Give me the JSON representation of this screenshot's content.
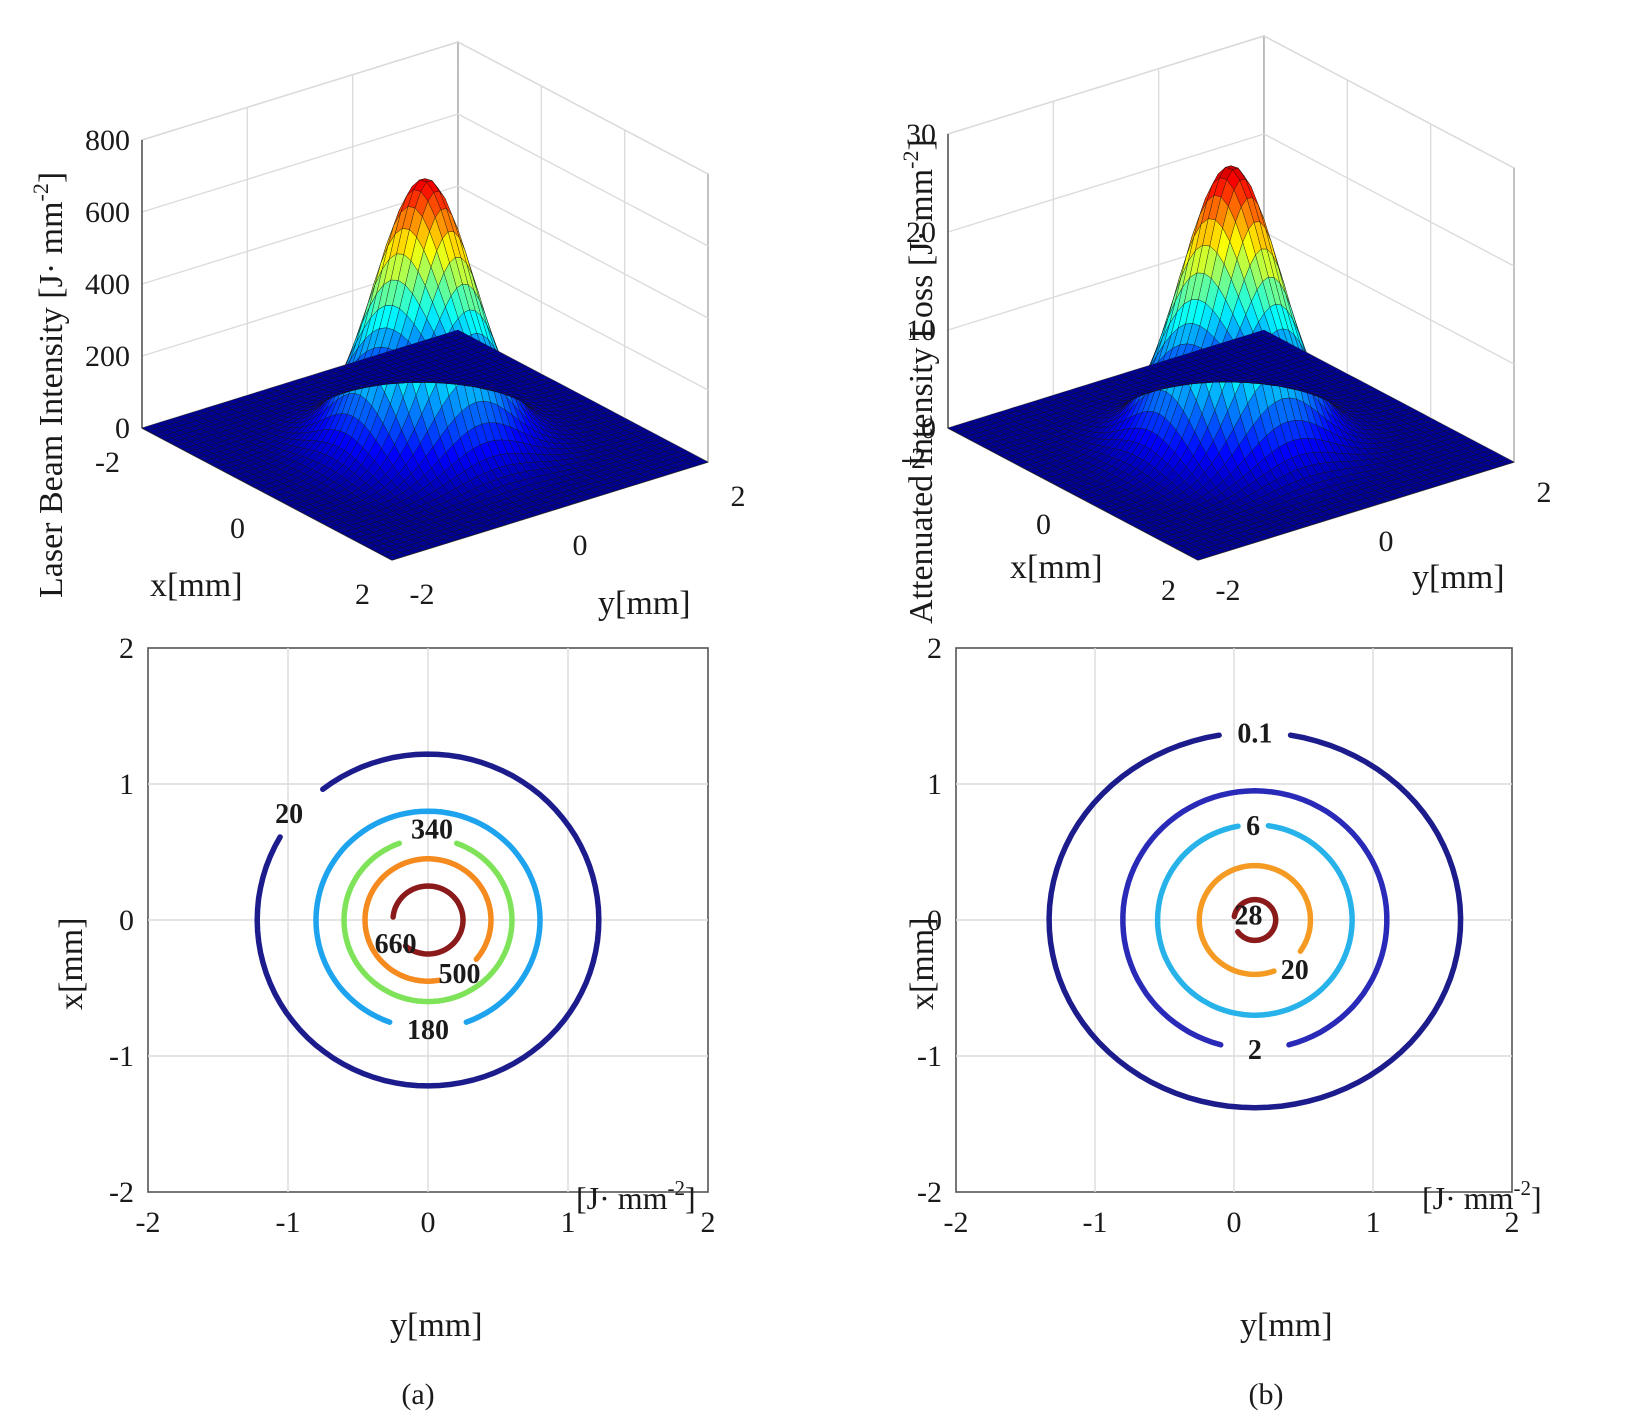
{
  "figure": {
    "caption_a": "(a)",
    "caption_b": "(b)",
    "unit_label_a": "[J· mm",
    "unit_label_b": "[J· mm",
    "unit_exponent": "-2"
  },
  "chart_data": [
    {
      "type": "surface",
      "panel": "a-top",
      "zlabel": "Laser Beam Intensity [J· mm",
      "zlabel_exp": "-2",
      "xlabel": "x[mm]",
      "ylabel": "y[mm]",
      "xlim": [
        -2,
        2
      ],
      "ylim": [
        -2,
        2
      ],
      "zlim": [
        0,
        800
      ],
      "x_ticks": [
        "-2",
        "0",
        "2"
      ],
      "y_ticks": [
        "-2",
        "0",
        "2"
      ],
      "z_ticks": [
        "0",
        "200",
        "400",
        "600",
        "800"
      ],
      "peak": 740,
      "sigma_mm": 0.5,
      "colormap": "jet"
    },
    {
      "type": "surface",
      "panel": "b-top",
      "zlabel": "Attenuated Intensity Loss [J· mm",
      "zlabel_exp": "-2",
      "xlabel": "x[mm]",
      "ylabel": "y[mm]",
      "xlim": [
        -2,
        2
      ],
      "ylim": [
        -2,
        2
      ],
      "zlim": [
        0,
        30
      ],
      "x_ticks": [
        "-2",
        "0",
        "2"
      ],
      "y_ticks": [
        "-2",
        "0",
        "2"
      ],
      "z_ticks": [
        "0",
        "10",
        "20",
        "30"
      ],
      "peak": 28.5,
      "sigma_mm": 0.5,
      "colormap": "jet"
    },
    {
      "type": "contour",
      "panel": "a-bottom",
      "xlabel": "y[mm]",
      "ylabel": "x[mm]",
      "xlim": [
        -2,
        2
      ],
      "ylim": [
        -2,
        2
      ],
      "x_ticks": [
        "-2",
        "-1",
        "0",
        "1",
        "2"
      ],
      "y_ticks": [
        "2",
        "1",
        "0",
        "-1",
        "-2"
      ],
      "grid": true,
      "center": [
        0,
        0
      ],
      "contours": [
        {
          "label": "20",
          "radius": 1.22,
          "color": "#1c1c8c"
        },
        {
          "label": "180",
          "radius": 0.8,
          "color": "#1ea3ef"
        },
        {
          "label": "340",
          "radius": 0.6,
          "color": "#7fe35a"
        },
        {
          "label": "500",
          "radius": 0.45,
          "color": "#f58a1f"
        },
        {
          "label": "660",
          "radius": 0.25,
          "color": "#8b1a1a"
        }
      ]
    },
    {
      "type": "contour",
      "panel": "b-bottom",
      "xlabel": "y[mm]",
      "ylabel": "x[mm]",
      "xlim": [
        -2,
        2
      ],
      "ylim": [
        -2,
        2
      ],
      "x_ticks": [
        "-2",
        "-1",
        "0",
        "1",
        "2"
      ],
      "y_ticks": [
        "2",
        "1",
        "0",
        "-1",
        "-2"
      ],
      "grid": true,
      "center": [
        0.15,
        0
      ],
      "contours": [
        {
          "label": "0.1",
          "radius": 1.45,
          "rx": 1.48,
          "ry": 1.38,
          "color": "#1c1c8c"
        },
        {
          "label": "2",
          "radius": 0.95,
          "color": "#2a2ab8"
        },
        {
          "label": "6",
          "radius": 0.7,
          "color": "#27b3ea"
        },
        {
          "label": "20",
          "radius": 0.4,
          "color": "#f59a22"
        },
        {
          "label": "28",
          "radius": 0.15,
          "color": "#8b1a1a"
        }
      ]
    }
  ]
}
